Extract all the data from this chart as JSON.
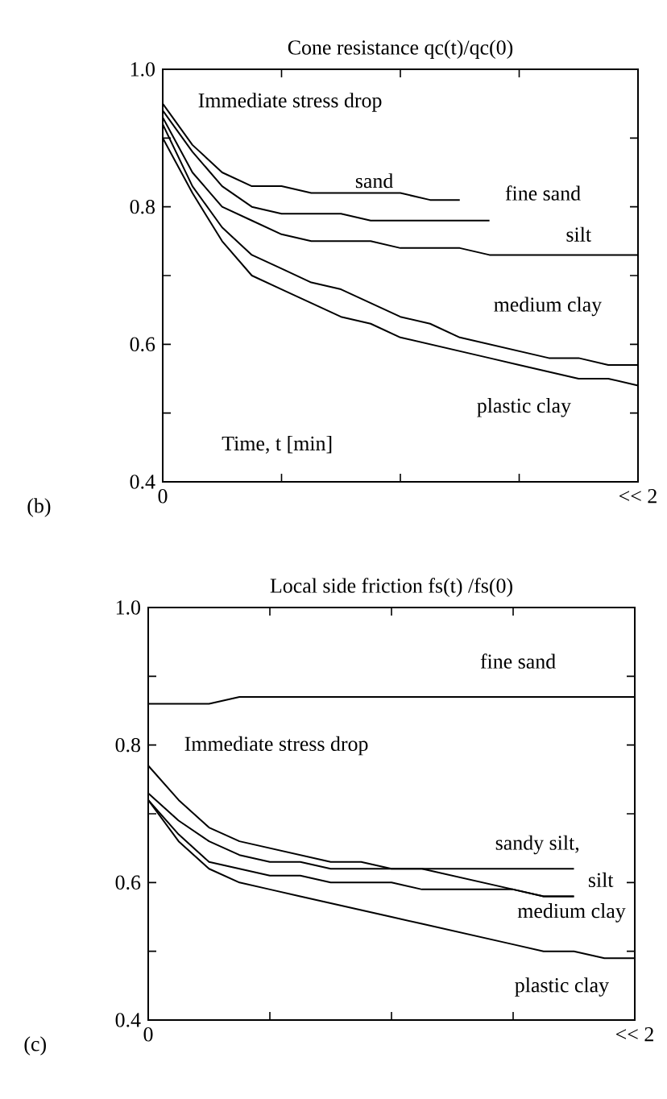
{
  "chart_data": [
    {
      "type": "line",
      "title": "Cone resistance qc(t)/qc(0)",
      "xlabel": "Time, t [min]",
      "categories": [
        "0",
        null,
        null,
        null,
        null,
        null,
        null,
        null,
        null,
        null,
        null,
        null,
        null,
        null,
        null,
        null,
        "<< 2"
      ],
      "ylim": [
        0.4,
        1.0
      ],
      "yticks": [
        0.4,
        {
          "value": 0.5,
          "label": null
        },
        0.6,
        {
          "value": 0.7,
          "label": null
        },
        0.8,
        {
          "value": 0.9,
          "label": null
        },
        {
          "value": 1.0,
          "label": "1.0"
        }
      ],
      "annotations": [
        "(b)",
        "Immediate stress drop"
      ],
      "series": [
        {
          "name": "sand",
          "color": "#000000",
          "values": [
            0.95,
            0.89,
            0.85,
            0.83,
            0.83,
            0.82,
            0.82,
            0.82,
            0.82,
            0.81,
            0.81,
            null,
            null,
            null,
            null,
            null,
            null
          ]
        },
        {
          "name": "fine sand",
          "color": "#000000",
          "values": [
            0.94,
            0.88,
            0.83,
            0.8,
            0.79,
            0.79,
            0.79,
            0.78,
            0.78,
            0.78,
            0.78,
            0.78,
            null,
            null,
            null,
            null,
            null
          ]
        },
        {
          "name": "silt",
          "color": "#000000",
          "values": [
            0.93,
            0.85,
            0.8,
            0.78,
            0.76,
            0.75,
            0.75,
            0.75,
            0.74,
            0.74,
            0.74,
            0.73,
            0.73,
            0.73,
            0.73,
            0.73,
            0.73
          ]
        },
        {
          "name": "medium clay",
          "color": "#000000",
          "values": [
            0.92,
            0.83,
            0.77,
            0.73,
            0.71,
            0.69,
            0.68,
            0.66,
            0.64,
            0.63,
            0.61,
            0.6,
            0.59,
            0.58,
            0.58,
            0.57,
            0.57
          ]
        },
        {
          "name": "plastic clay",
          "color": "#000000",
          "values": [
            0.9,
            0.82,
            0.75,
            0.7,
            0.68,
            0.66,
            0.64,
            0.63,
            0.61,
            0.6,
            0.59,
            0.58,
            0.57,
            0.56,
            0.55,
            0.55,
            0.54
          ]
        }
      ]
    },
    {
      "type": "line",
      "title": "Local side friction fs(t) /fs(0)",
      "categories": [
        "0",
        null,
        null,
        null,
        null,
        null,
        null,
        null,
        null,
        null,
        null,
        null,
        null,
        null,
        null,
        null,
        "<< 2"
      ],
      "ylim": [
        0.4,
        1.0
      ],
      "yticks": [
        0.4,
        {
          "value": 0.5,
          "label": null
        },
        0.6,
        {
          "value": 0.7,
          "label": null
        },
        0.8,
        {
          "value": 0.9,
          "label": null
        },
        {
          "value": 1.0,
          "label": "1.0"
        }
      ],
      "annotations": [
        "(c)",
        "Immediate stress drop"
      ],
      "series": [
        {
          "name": "fine sand",
          "color": "#000000",
          "values": [
            0.86,
            0.86,
            0.86,
            0.87,
            0.87,
            0.87,
            0.87,
            0.87,
            0.87,
            0.87,
            0.87,
            0.87,
            0.87,
            0.87,
            0.87,
            0.87,
            0.87
          ]
        },
        {
          "name": "sandy silt,",
          "color": "#000000",
          "values": [
            0.73,
            0.69,
            0.66,
            0.64,
            0.63,
            0.63,
            0.62,
            0.62,
            0.62,
            0.62,
            0.62,
            0.62,
            0.62,
            0.62,
            0.62,
            null,
            null
          ]
        },
        {
          "name": "silt",
          "color": "#000000",
          "values": [
            0.72,
            0.67,
            0.63,
            0.62,
            0.61,
            0.61,
            0.6,
            0.6,
            0.6,
            0.59,
            0.59,
            0.59,
            0.59,
            0.58,
            0.58,
            null,
            null
          ]
        },
        {
          "name": "medium clay",
          "color": "#000000",
          "values": [
            0.77,
            0.72,
            0.68,
            0.66,
            0.65,
            0.64,
            0.63,
            0.63,
            0.62,
            0.62,
            0.61,
            0.6,
            0.59,
            0.58,
            0.58,
            null,
            null
          ]
        },
        {
          "name": "plastic clay",
          "color": "#000000",
          "values": [
            0.72,
            0.66,
            0.62,
            0.6,
            0.59,
            0.58,
            0.57,
            0.56,
            0.55,
            0.54,
            0.53,
            0.52,
            0.51,
            0.5,
            0.5,
            0.49,
            0.49
          ]
        }
      ]
    }
  ]
}
